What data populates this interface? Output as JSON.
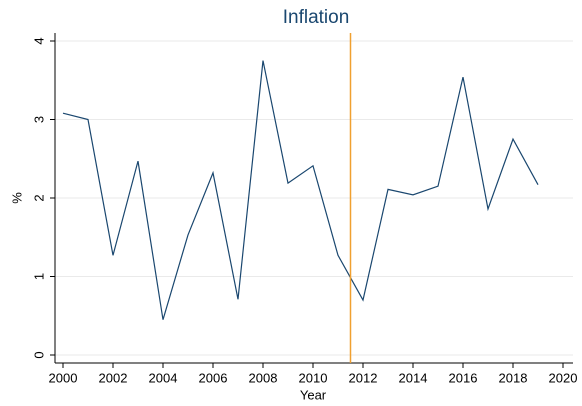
{
  "chart_data": {
    "type": "line",
    "title": "Inflation",
    "xlabel": "Year",
    "ylabel": "%",
    "x": [
      2000,
      2001,
      2002,
      2003,
      2004,
      2005,
      2006,
      2007,
      2008,
      2009,
      2010,
      2011,
      2012,
      2013,
      2014,
      2015,
      2016,
      2017,
      2018,
      2019
    ],
    "series": [
      {
        "name": "Inflation",
        "color": "#1a476f",
        "values": [
          3.08,
          3.0,
          1.27,
          2.47,
          0.45,
          1.53,
          2.32,
          0.71,
          3.75,
          2.19,
          2.41,
          1.27,
          0.7,
          2.11,
          2.04,
          2.15,
          3.54,
          1.86,
          2.75,
          2.17
        ]
      }
    ],
    "xlim": [
      2000,
      2020
    ],
    "xticks": [
      2000,
      2002,
      2004,
      2006,
      2008,
      2010,
      2012,
      2014,
      2016,
      2018,
      2020
    ],
    "ylim": [
      0,
      4
    ],
    "yticks": [
      0,
      1,
      2,
      3,
      4
    ],
    "grid": true,
    "vline": {
      "x": 2011.5,
      "color": "#f0a030"
    }
  }
}
